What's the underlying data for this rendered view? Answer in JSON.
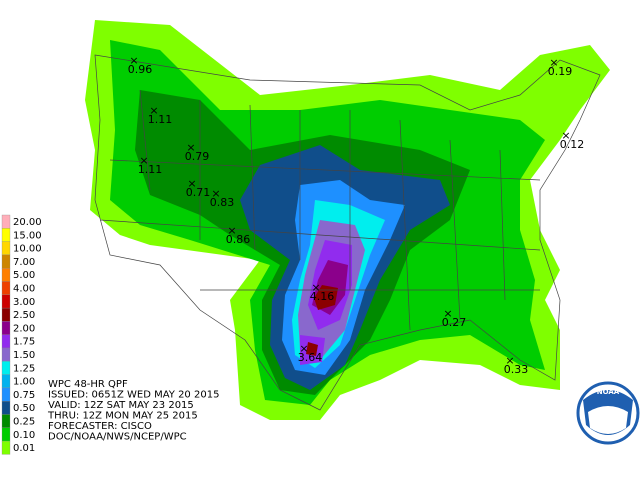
{
  "header": {
    "lines": [
      "WPC 48-HR QPF",
      "ISSUED: 0651Z WED MAY 20 2015",
      "VALID: 12Z SAT MAY 23 2015",
      "THRU: 12Z MON MAY 25 2015",
      "FORECASTER: CISCO",
      "DOC/NOAA/NWS/NCEP/WPC"
    ]
  },
  "legend": [
    {
      "label": "20.00",
      "color": "#ffaeb9"
    },
    {
      "label": "15.00",
      "color": "#ffff00"
    },
    {
      "label": "10.00",
      "color": "#ffd700"
    },
    {
      "label": "7.00",
      "color": "#cd8500"
    },
    {
      "label": "5.00",
      "color": "#ff7f00"
    },
    {
      "label": "4.00",
      "color": "#ee4000"
    },
    {
      "label": "3.00",
      "color": "#cd0000"
    },
    {
      "label": "2.50",
      "color": "#8b0000"
    },
    {
      "label": "2.00",
      "color": "#8b008b"
    },
    {
      "label": "1.75",
      "color": "#912cee"
    },
    {
      "label": "1.50",
      "color": "#8968cd"
    },
    {
      "label": "1.25",
      "color": "#00eeee"
    },
    {
      "label": "1.00",
      "color": "#00b2ee"
    },
    {
      "label": "0.75",
      "color": "#1e90ff"
    },
    {
      "label": "0.50",
      "color": "#104e8b"
    },
    {
      "label": "0.25",
      "color": "#008b00"
    },
    {
      "label": "0.10",
      "color": "#00cd00"
    },
    {
      "label": "0.01",
      "color": "#7fff00"
    }
  ],
  "maxima": [
    "0.96",
    "1.11",
    "0.79",
    "1.11",
    "0.71",
    "0.83",
    "0.86",
    "4.16",
    "3.64",
    "0.19",
    "0.12",
    "0.27",
    "0.33"
  ]
}
